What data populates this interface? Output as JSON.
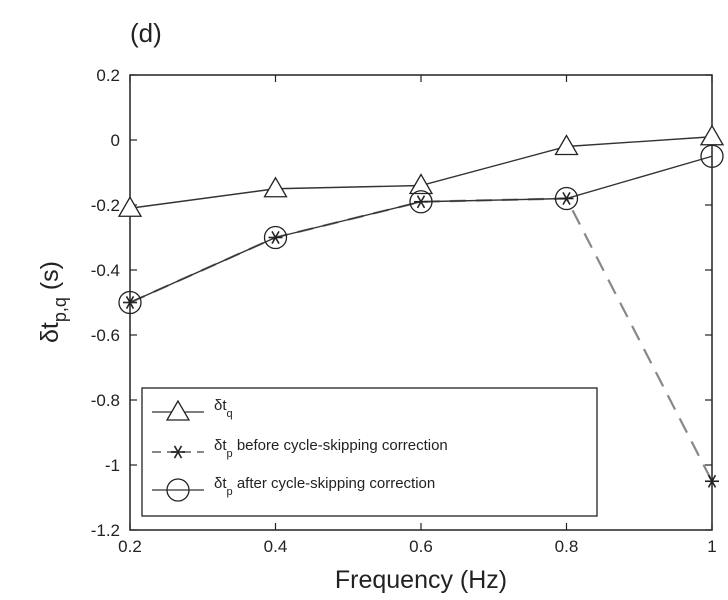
{
  "panel_label": "(d)",
  "chart_data": {
    "type": "line",
    "xlabel": "Frequency (Hz)",
    "ylabel": {
      "base": "δt",
      "subscript": "p,q",
      "suffix": " (s)"
    },
    "xlim": [
      0.2,
      1.0
    ],
    "ylim": [
      -1.2,
      0.2
    ],
    "x_ticks": [
      0.2,
      0.4,
      0.6,
      0.8,
      1.0
    ],
    "x_tick_labels": [
      "0.2",
      "0.4",
      "0.6",
      "0.8",
      "1"
    ],
    "y_ticks": [
      0.2,
      0,
      -0.2,
      -0.4,
      -0.6,
      -0.8,
      -1,
      -1.2
    ],
    "y_tick_labels": [
      "0.2",
      "0",
      "-0.2",
      "-0.4",
      "-0.6",
      "-0.8",
      "-1",
      "-1.2"
    ],
    "grid": false,
    "legend_position": "bottom-left",
    "series": [
      {
        "key": "dtq",
        "marker": "triangle",
        "line": "solid",
        "color": "#333333",
        "x": [
          0.2,
          0.4,
          0.6,
          0.8,
          1.0
        ],
        "y": [
          -0.21,
          -0.15,
          -0.14,
          -0.02,
          0.01
        ],
        "legend": {
          "base": "δt",
          "sub": "q",
          "rest": ""
        }
      },
      {
        "key": "dtp_before",
        "marker": "asterisk",
        "line": "dashed",
        "color": "#888888",
        "x": [
          0.2,
          0.4,
          0.6,
          0.8,
          1.0
        ],
        "y": [
          -0.5,
          -0.3,
          -0.19,
          -0.18,
          -1.05
        ],
        "legend": {
          "base": "δt",
          "sub": "p",
          "rest": " before cycle-skipping correction"
        }
      },
      {
        "key": "dtp_after",
        "marker": "circle",
        "line": "solid",
        "color": "#333333",
        "x": [
          0.2,
          0.4,
          0.6,
          0.8,
          1.0
        ],
        "y": [
          -0.5,
          -0.3,
          -0.19,
          -0.18,
          -0.05
        ],
        "legend": {
          "base": "δt",
          "sub": "p",
          "rest": " after cycle-skipping correction"
        }
      }
    ]
  }
}
